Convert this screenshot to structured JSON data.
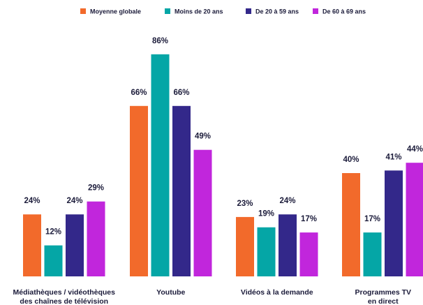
{
  "chart_data": {
    "type": "bar",
    "categories": [
      [
        "Médiathèques / vidéothèques",
        "des chaînes de télévision"
      ],
      [
        "Youtube"
      ],
      [
        "Vidéos à la demande"
      ],
      [
        "Programmes TV",
        "en direct"
      ]
    ],
    "series": [
      {
        "name": "Moyenne globale",
        "color": "#f26a2b",
        "values": [
          24,
          66,
          23,
          40
        ],
        "labels": [
          "24%",
          "66%",
          "23%",
          "40%"
        ]
      },
      {
        "name": "Moins de 20 ans",
        "color": "#05a6a6",
        "values": [
          12,
          86,
          19,
          17
        ],
        "labels": [
          "12%",
          "86%",
          "19%",
          "17%"
        ]
      },
      {
        "name": "De 20 à 59 ans",
        "color": "#33288a",
        "values": [
          24,
          66,
          24,
          41
        ],
        "labels": [
          "24%",
          "66%",
          "24%",
          "41%"
        ]
      },
      {
        "name": "De 60 à 69 ans",
        "color": "#c126dc",
        "values": [
          29,
          49,
          17,
          44
        ],
        "labels": [
          "29%",
          "49%",
          "17%",
          "44%"
        ]
      }
    ],
    "ylim": [
      0,
      100
    ],
    "grid": false,
    "legend_position": "top-center"
  }
}
